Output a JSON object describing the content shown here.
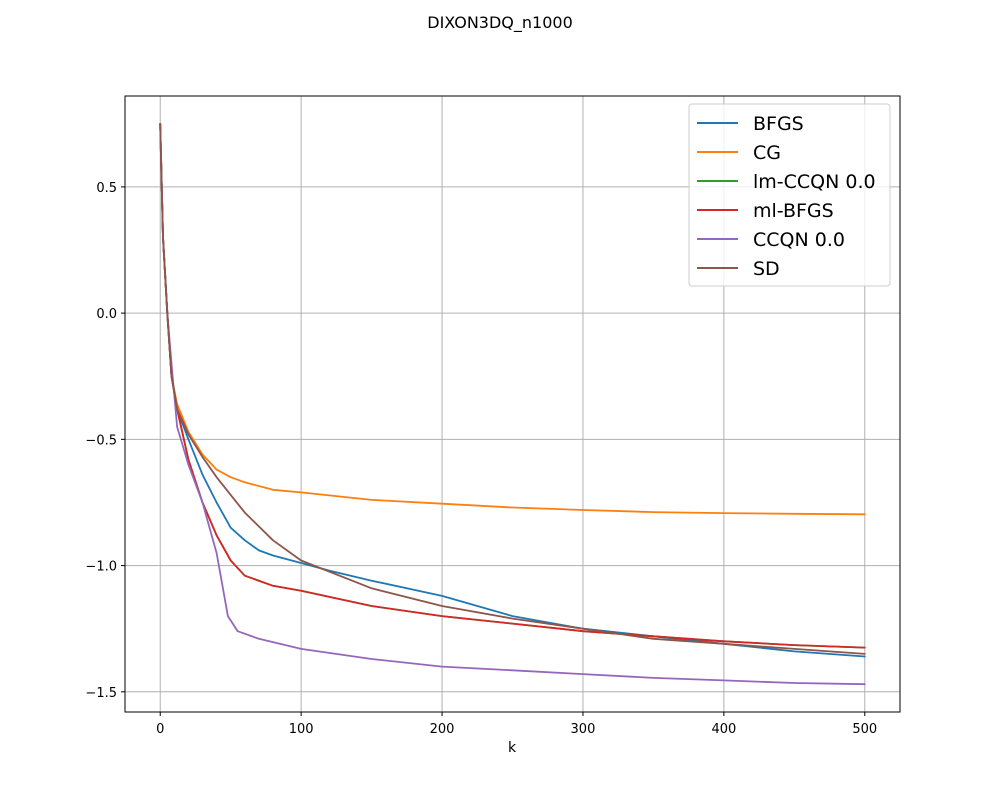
{
  "chart_data": {
    "type": "line",
    "title": "DIXON3DQ_n1000",
    "xlabel": "k",
    "ylabel": "",
    "xlim": [
      -25,
      525
    ],
    "ylim": [
      -1.58,
      0.86
    ],
    "xticks": [
      0,
      100,
      200,
      300,
      400,
      500
    ],
    "xtick_labels": [
      "0",
      "100",
      "200",
      "300",
      "400",
      "500"
    ],
    "yticks": [
      -1.5,
      -1.0,
      -0.5,
      0.0,
      0.5
    ],
    "ytick_labels": [
      "−1.5",
      "−1.0",
      "−0.5",
      "0.0",
      "0.5"
    ],
    "grid": true,
    "legend_position": "top-right",
    "series": [
      {
        "name": "BFGS",
        "color": "#1f77b4",
        "points": [
          [
            0,
            0.75
          ],
          [
            2,
            0.3
          ],
          [
            5,
            0.0
          ],
          [
            8,
            -0.25
          ],
          [
            12,
            -0.38
          ],
          [
            20,
            -0.5
          ],
          [
            30,
            -0.64
          ],
          [
            40,
            -0.75
          ],
          [
            50,
            -0.85
          ],
          [
            60,
            -0.9
          ],
          [
            70,
            -0.94
          ],
          [
            80,
            -0.96
          ],
          [
            100,
            -0.99
          ],
          [
            120,
            -1.02
          ],
          [
            150,
            -1.06
          ],
          [
            200,
            -1.12
          ],
          [
            250,
            -1.2
          ],
          [
            300,
            -1.25
          ],
          [
            350,
            -1.28
          ],
          [
            400,
            -1.31
          ],
          [
            450,
            -1.34
          ],
          [
            500,
            -1.36
          ]
        ]
      },
      {
        "name": "CG",
        "color": "#ff7f0e",
        "points": [
          [
            0,
            0.75
          ],
          [
            2,
            0.3
          ],
          [
            5,
            0.0
          ],
          [
            8,
            -0.25
          ],
          [
            12,
            -0.36
          ],
          [
            20,
            -0.47
          ],
          [
            30,
            -0.56
          ],
          [
            40,
            -0.62
          ],
          [
            50,
            -0.65
          ],
          [
            60,
            -0.67
          ],
          [
            80,
            -0.7
          ],
          [
            100,
            -0.71
          ],
          [
            150,
            -0.74
          ],
          [
            200,
            -0.755
          ],
          [
            250,
            -0.77
          ],
          [
            300,
            -0.78
          ],
          [
            350,
            -0.788
          ],
          [
            400,
            -0.792
          ],
          [
            450,
            -0.795
          ],
          [
            500,
            -0.797
          ]
        ]
      },
      {
        "name": "lm-CCQN 0.0",
        "color": "#2ca02c",
        "points": [
          [
            0,
            0.75
          ],
          [
            2,
            0.3
          ],
          [
            5,
            0.0
          ],
          [
            8,
            -0.25
          ],
          [
            12,
            -0.38
          ],
          [
            20,
            -0.58
          ],
          [
            30,
            -0.75
          ],
          [
            40,
            -0.88
          ],
          [
            50,
            -0.98
          ],
          [
            60,
            -1.04
          ],
          [
            80,
            -1.08
          ],
          [
            100,
            -1.1
          ],
          [
            150,
            -1.16
          ],
          [
            200,
            -1.2
          ],
          [
            250,
            -1.23
          ],
          [
            300,
            -1.26
          ],
          [
            350,
            -1.28
          ],
          [
            400,
            -1.3
          ],
          [
            450,
            -1.315
          ],
          [
            500,
            -1.325
          ]
        ]
      },
      {
        "name": "ml-BFGS",
        "color": "#d62728",
        "points": [
          [
            0,
            0.75
          ],
          [
            2,
            0.3
          ],
          [
            5,
            0.0
          ],
          [
            8,
            -0.25
          ],
          [
            12,
            -0.38
          ],
          [
            20,
            -0.58
          ],
          [
            30,
            -0.75
          ],
          [
            40,
            -0.88
          ],
          [
            50,
            -0.98
          ],
          [
            60,
            -1.04
          ],
          [
            80,
            -1.08
          ],
          [
            100,
            -1.1
          ],
          [
            150,
            -1.16
          ],
          [
            200,
            -1.2
          ],
          [
            250,
            -1.23
          ],
          [
            300,
            -1.26
          ],
          [
            350,
            -1.28
          ],
          [
            400,
            -1.3
          ],
          [
            450,
            -1.315
          ],
          [
            500,
            -1.325
          ]
        ]
      },
      {
        "name": "CCQN 0.0",
        "color": "#9467bd",
        "points": [
          [
            0,
            0.75
          ],
          [
            2,
            0.3
          ],
          [
            5,
            0.0
          ],
          [
            8,
            -0.2
          ],
          [
            12,
            -0.45
          ],
          [
            20,
            -0.6
          ],
          [
            30,
            -0.75
          ],
          [
            40,
            -0.95
          ],
          [
            48,
            -1.2
          ],
          [
            55,
            -1.26
          ],
          [
            70,
            -1.29
          ],
          [
            100,
            -1.33
          ],
          [
            150,
            -1.37
          ],
          [
            200,
            -1.4
          ],
          [
            250,
            -1.415
          ],
          [
            300,
            -1.43
          ],
          [
            350,
            -1.445
          ],
          [
            400,
            -1.455
          ],
          [
            450,
            -1.465
          ],
          [
            500,
            -1.47
          ]
        ]
      },
      {
        "name": "SD",
        "color": "#8c564b",
        "points": [
          [
            0,
            0.75
          ],
          [
            2,
            0.3
          ],
          [
            5,
            0.0
          ],
          [
            8,
            -0.25
          ],
          [
            12,
            -0.38
          ],
          [
            20,
            -0.48
          ],
          [
            30,
            -0.57
          ],
          [
            40,
            -0.65
          ],
          [
            50,
            -0.72
          ],
          [
            60,
            -0.79
          ],
          [
            80,
            -0.9
          ],
          [
            100,
            -0.98
          ],
          [
            150,
            -1.09
          ],
          [
            200,
            -1.16
          ],
          [
            250,
            -1.21
          ],
          [
            300,
            -1.25
          ],
          [
            350,
            -1.29
          ],
          [
            400,
            -1.31
          ],
          [
            450,
            -1.33
          ],
          [
            500,
            -1.35
          ]
        ]
      }
    ]
  }
}
